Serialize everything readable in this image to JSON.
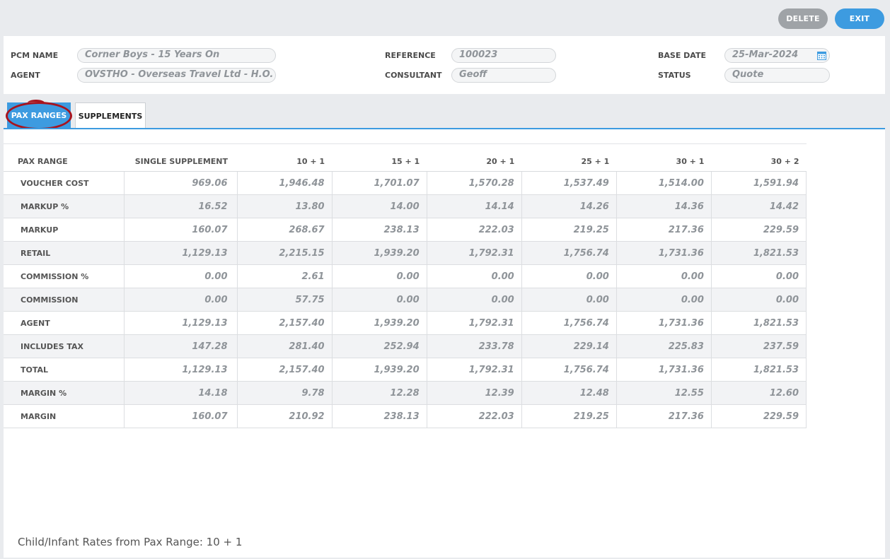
{
  "toolbar": {
    "delete_label": "DELETE",
    "exit_label": "EXIT"
  },
  "header": {
    "pcm_name_label": "PCM NAME",
    "pcm_name_value": "Corner Boys - 15 Years On",
    "agent_label": "AGENT",
    "agent_value": "OVSTHO - Overseas Travel Ltd - H.O.",
    "reference_label": "REFERENCE",
    "reference_value": "100023",
    "consultant_label": "CONSULTANT",
    "consultant_value": "Geoff",
    "base_date_label": "BASE DATE",
    "base_date_value": "25-Mar-2024",
    "status_label": "STATUS",
    "status_value": "Quote"
  },
  "tabs": [
    {
      "label": "PAX RANGES",
      "active": true
    },
    {
      "label": "SUPPLEMENTS",
      "active": false
    }
  ],
  "table": {
    "columns": [
      "PAX RANGE",
      "SINGLE SUPPLEMENT",
      "10 + 1",
      "15 + 1",
      "20 + 1",
      "25 + 1",
      "30 + 1",
      "30 + 2"
    ],
    "rows": [
      {
        "label": "VOUCHER COST",
        "values": [
          "969.06",
          "1,946.48",
          "1,701.07",
          "1,570.28",
          "1,537.49",
          "1,514.00",
          "1,591.94"
        ]
      },
      {
        "label": "MARKUP %",
        "values": [
          "16.52",
          "13.80",
          "14.00",
          "14.14",
          "14.26",
          "14.36",
          "14.42"
        ]
      },
      {
        "label": "MARKUP",
        "values": [
          "160.07",
          "268.67",
          "238.13",
          "222.03",
          "219.25",
          "217.36",
          "229.59"
        ]
      },
      {
        "label": "RETAIL",
        "values": [
          "1,129.13",
          "2,215.15",
          "1,939.20",
          "1,792.31",
          "1,756.74",
          "1,731.36",
          "1,821.53"
        ]
      },
      {
        "label": "COMMISSION %",
        "values": [
          "0.00",
          "2.61",
          "0.00",
          "0.00",
          "0.00",
          "0.00",
          "0.00"
        ]
      },
      {
        "label": "COMMISSION",
        "values": [
          "0.00",
          "57.75",
          "0.00",
          "0.00",
          "0.00",
          "0.00",
          "0.00"
        ]
      },
      {
        "label": "AGENT",
        "values": [
          "1,129.13",
          "2,157.40",
          "1,939.20",
          "1,792.31",
          "1,756.74",
          "1,731.36",
          "1,821.53"
        ]
      },
      {
        "label": "INCLUDES TAX",
        "values": [
          "147.28",
          "281.40",
          "252.94",
          "233.78",
          "229.14",
          "225.83",
          "237.59"
        ]
      },
      {
        "label": "TOTAL",
        "values": [
          "1,129.13",
          "2,157.40",
          "1,939.20",
          "1,792.31",
          "1,756.74",
          "1,731.36",
          "1,821.53"
        ]
      },
      {
        "label": "MARGIN %",
        "values": [
          "14.18",
          "9.78",
          "12.28",
          "12.39",
          "12.48",
          "12.55",
          "12.60"
        ]
      },
      {
        "label": "MARGIN",
        "values": [
          "160.07",
          "210.92",
          "238.13",
          "222.03",
          "219.25",
          "217.36",
          "229.59"
        ]
      }
    ]
  },
  "footer": {
    "note": "Child/Infant Rates from Pax Range: 10 + 1"
  },
  "colors": {
    "accent": "#3d9be0",
    "delete_button": "#9fa3a7",
    "highlight_ring": "#a8141e"
  },
  "icons": {
    "calendar": "calendar-icon"
  }
}
